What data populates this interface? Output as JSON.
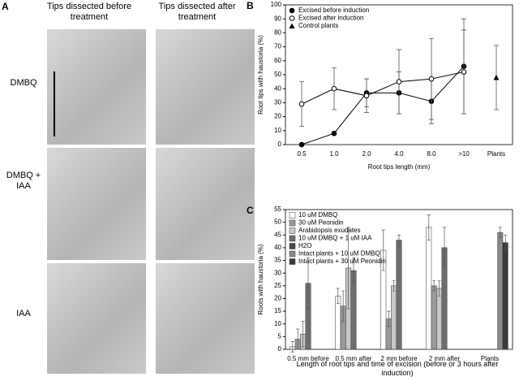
{
  "panel_a": {
    "label": "A",
    "columns": [
      "Tips dissected before treatment",
      "Tips dissected after treatment"
    ],
    "rows": [
      "DMBQ",
      "DMBQ + IAA",
      "IAA"
    ]
  },
  "chart_data": [
    {
      "type": "line",
      "label": "B",
      "ylabel": "Root tips with haustoria (%)",
      "xlabel": "Root tips length (mm)",
      "categories": [
        "0.5",
        "1.0",
        "2.0",
        "4.0",
        "8.0",
        ">10",
        "Plants"
      ],
      "ylim": [
        0,
        100
      ],
      "yticks": [
        0,
        10,
        20,
        30,
        40,
        50,
        60,
        70,
        80,
        90,
        100
      ],
      "series": [
        {
          "name": "Excised before induction",
          "color": "#000000",
          "marker": "circle-filled",
          "values": [
            0,
            8,
            37,
            37,
            31,
            56,
            null
          ],
          "errors": [
            null,
            null,
            10,
            15,
            16,
            34,
            null
          ]
        },
        {
          "name": "Excised after induction",
          "color": "#000000",
          "marker": "circle-open",
          "values": [
            29,
            40,
            35,
            45,
            47,
            52,
            null
          ],
          "errors": [
            16,
            15,
            12,
            23,
            29,
            30,
            null
          ]
        },
        {
          "name": "Control plants",
          "color": "#000000",
          "marker": "triangle",
          "values": [
            null,
            null,
            null,
            null,
            null,
            null,
            48
          ],
          "errors": [
            null,
            null,
            null,
            null,
            null,
            null,
            23
          ]
        }
      ]
    },
    {
      "type": "bar",
      "label": "C",
      "ylabel": "Roots with haustoria (%)",
      "xlabel": "Length of root tips and time of excision (before or 3 hours after induction)",
      "categories": [
        "0.5 mm before",
        "0.5 mm after",
        "2 mm before",
        "2 mm after",
        "Plants"
      ],
      "ylim": [
        0,
        55
      ],
      "yticks": [
        0,
        5,
        10,
        15,
        20,
        25,
        30,
        35,
        40,
        45,
        50,
        55
      ],
      "series": [
        {
          "name": "10 uM DMBQ",
          "color": "#ffffff",
          "values": [
            1,
            21,
            39,
            48,
            null
          ],
          "errors": [
            2,
            3,
            8,
            5,
            null
          ]
        },
        {
          "name": "30 uM Peonidin",
          "color": "#9a9a9a",
          "values": [
            4,
            17,
            12,
            25,
            null
          ],
          "errors": [
            4,
            6,
            3,
            2,
            null
          ]
        },
        {
          "name": "Arabidopsis exudates",
          "color": "#c8c8c8",
          "values": [
            6,
            32,
            25,
            24,
            null
          ],
          "errors": [
            5,
            16,
            2,
            3,
            null
          ]
        },
        {
          "name": "10 uM DMBQ + 1 uM IAA",
          "color": "#6e6e6e",
          "values": [
            26,
            31,
            43,
            40,
            null
          ],
          "errors": [
            10,
            5,
            2,
            8,
            null
          ]
        },
        {
          "name": "H2O",
          "color": "#4a4a4a",
          "values": [
            0,
            0,
            0,
            0,
            null
          ],
          "errors": [
            null,
            null,
            null,
            null,
            null
          ]
        },
        {
          "name": "Intact plants + 10 uM DMBQ",
          "color": "#8a8a8a",
          "values": [
            null,
            null,
            null,
            null,
            46
          ],
          "errors": [
            null,
            null,
            null,
            null,
            2
          ]
        },
        {
          "name": "Intact plants + 30 uM Peonidin",
          "color": "#3a3a3a",
          "values": [
            null,
            null,
            null,
            null,
            42
          ],
          "errors": [
            null,
            null,
            null,
            null,
            3
          ]
        }
      ]
    }
  ]
}
